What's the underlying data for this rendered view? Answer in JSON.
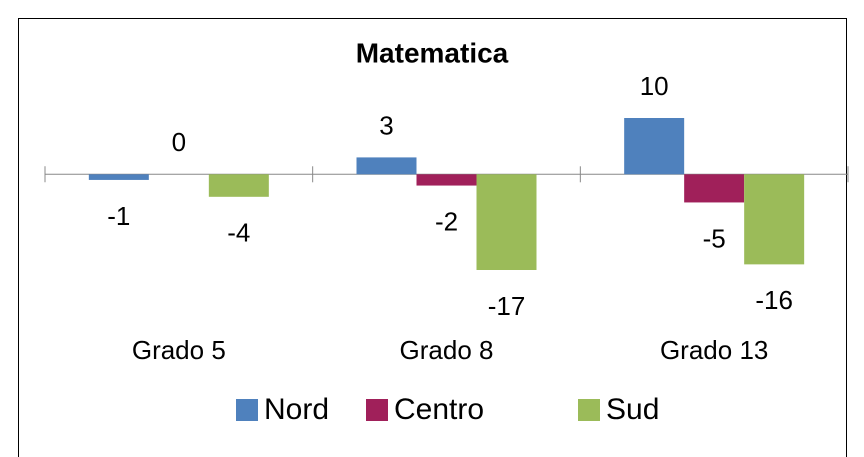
{
  "chart_data": {
    "type": "bar",
    "title": "Matematica",
    "categories": [
      "Grado 5",
      "Grado 8",
      "Grado 13"
    ],
    "series": [
      {
        "name": "Nord",
        "color": "#4f81bd",
        "values": [
          -1,
          3,
          10
        ]
      },
      {
        "name": "Centro",
        "color": "#a0205a",
        "values": [
          0,
          -2,
          -5
        ]
      },
      {
        "name": "Sud",
        "color": "#9bbb59",
        "values": [
          -4,
          -17,
          -16
        ]
      }
    ]
  }
}
